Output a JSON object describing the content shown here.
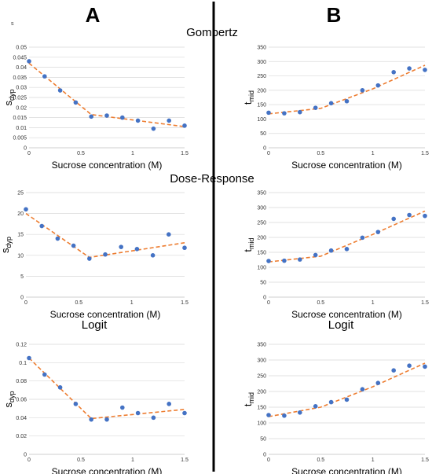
{
  "columns": {
    "left": "A",
    "right": "B"
  },
  "sections": {
    "gompertz": "Gompertz",
    "dose_response": "Dose-Response",
    "logit_left": "Logit",
    "logit_right": "Logit"
  },
  "colors": {
    "points": "#4472C4",
    "fit": "#ED7D31",
    "grid": "#d9d9d9",
    "divider": "#000000"
  },
  "chart_data": [
    {
      "id": "gA",
      "type": "scatter",
      "xlabel": "Sucrose concentration (M)",
      "ylabel": "s",
      "ylabel_sub": "dyp",
      "corner_label": "s",
      "xlim": [
        0,
        1.5
      ],
      "ylim": [
        0,
        0.05
      ],
      "x_ticks": [
        0,
        0.5,
        1,
        1.5
      ],
      "x_tick_labels": [
        "0",
        "0.5",
        "1",
        "1.5"
      ],
      "y_ticks": [
        0,
        0.005,
        0.01,
        0.015,
        0.02,
        0.025,
        0.03,
        0.035,
        0.04,
        0.045,
        0.05
      ],
      "y_tick_labels": [
        "0",
        "0.005",
        "0.01",
        "0.015",
        "0.02",
        "0.025",
        "0.03",
        "0.035",
        "0.04",
        "0.045",
        "0.05"
      ],
      "points": {
        "x": [
          0,
          0.15,
          0.3,
          0.45,
          0.6,
          0.75,
          0.9,
          1.05,
          1.2,
          1.35,
          1.5
        ],
        "y": [
          0.043,
          0.0355,
          0.0285,
          0.0225,
          0.0155,
          0.016,
          0.015,
          0.0135,
          0.0095,
          0.0135,
          0.011
        ]
      },
      "fit": {
        "x": [
          0,
          0.6,
          1.5
        ],
        "y": [
          0.042,
          0.0165,
          0.0105
        ]
      },
      "grid": true
    },
    {
      "id": "gB",
      "type": "scatter",
      "xlabel": "Sucrose concentration (M)",
      "ylabel": "t",
      "ylabel_sub": "mid",
      "xlim": [
        0,
        1.5
      ],
      "ylim": [
        0,
        350
      ],
      "x_ticks": [
        0,
        0.5,
        1,
        1.5
      ],
      "x_tick_labels": [
        "0",
        "0.5",
        "1",
        "1.5"
      ],
      "y_ticks": [
        0,
        50,
        100,
        150,
        200,
        250,
        300,
        350
      ],
      "y_tick_labels": [
        "0",
        "50",
        "100",
        "150",
        "200",
        "250",
        "300",
        "350"
      ],
      "points": {
        "x": [
          0,
          0.15,
          0.3,
          0.45,
          0.6,
          0.75,
          0.9,
          1.05,
          1.2,
          1.35,
          1.5
        ],
        "y": [
          122,
          120,
          124,
          139,
          155,
          162,
          200,
          217,
          263,
          276,
          271
        ]
      },
      "fit": {
        "x": [
          0,
          0.5,
          1.0,
          1.5
        ],
        "y": [
          118,
          137,
          205,
          287
        ]
      },
      "grid": true
    },
    {
      "id": "dA",
      "type": "scatter",
      "xlabel": "Sucrose concentration (M)",
      "ylabel": "s",
      "ylabel_sub": "dyp",
      "xlim": [
        0,
        1.5
      ],
      "ylim": [
        0,
        25
      ],
      "x_ticks": [
        0,
        0.5,
        1,
        1.5
      ],
      "x_tick_labels": [
        "0",
        "0.5",
        "1",
        "1.5"
      ],
      "y_ticks": [
        0,
        5,
        10,
        15,
        20,
        25
      ],
      "y_tick_labels": [
        "0",
        "5",
        "10",
        "15",
        "20",
        "25"
      ],
      "points": {
        "x": [
          0,
          0.15,
          0.3,
          0.45,
          0.6,
          0.75,
          0.9,
          1.05,
          1.2,
          1.35,
          1.5
        ],
        "y": [
          21,
          17,
          14,
          12.3,
          9.2,
          10.2,
          12,
          11.5,
          10,
          15,
          11.8
        ]
      },
      "fit": {
        "x": [
          0,
          0.6,
          1.5
        ],
        "y": [
          20,
          9.5,
          13
        ]
      },
      "grid": true
    },
    {
      "id": "dB",
      "type": "scatter",
      "xlabel": "Sucrose concentration (M)",
      "ylabel": "t",
      "ylabel_sub": "mid",
      "xlim": [
        0,
        1.5
      ],
      "ylim": [
        0,
        350
      ],
      "x_ticks": [
        0,
        0.5,
        1,
        1.5
      ],
      "x_tick_labels": [
        "0",
        "0.5",
        "1",
        "1.5"
      ],
      "y_ticks": [
        0,
        50,
        100,
        150,
        200,
        250,
        300,
        350
      ],
      "y_tick_labels": [
        "0",
        "50",
        "100",
        "150",
        "200",
        "250",
        "300",
        "350"
      ],
      "points": {
        "x": [
          0,
          0.15,
          0.3,
          0.45,
          0.6,
          0.75,
          0.9,
          1.05,
          1.2,
          1.35,
          1.5
        ],
        "y": [
          121,
          122,
          126,
          141,
          156,
          161,
          199,
          218,
          262,
          275,
          272
        ]
      },
      "fit": {
        "x": [
          0,
          0.5,
          1.0,
          1.5
        ],
        "y": [
          118,
          137,
          210,
          288
        ]
      },
      "grid": true
    },
    {
      "id": "lA",
      "type": "scatter",
      "xlabel": "Sucrose concentration (M)",
      "ylabel": "s",
      "ylabel_sub": "dyp",
      "xlim": [
        0,
        1.5
      ],
      "ylim": [
        0,
        0.12
      ],
      "x_ticks": [
        0,
        0.5,
        1,
        1.5
      ],
      "x_tick_labels": [
        "0",
        "0.5",
        "1",
        "1.5"
      ],
      "y_ticks": [
        0,
        0.02,
        0.04,
        0.06,
        0.08,
        0.1,
        0.12
      ],
      "y_tick_labels": [
        "0",
        "0.02",
        "0.04",
        "0.06",
        "0.08",
        "0.1",
        "0.12"
      ],
      "points": {
        "x": [
          0,
          0.15,
          0.3,
          0.45,
          0.6,
          0.75,
          0.9,
          1.05,
          1.2,
          1.35,
          1.5
        ],
        "y": [
          0.105,
          0.087,
          0.073,
          0.055,
          0.038,
          0.038,
          0.051,
          0.045,
          0.04,
          0.055,
          0.045
        ]
      },
      "fit": {
        "x": [
          0,
          0.6,
          1.5
        ],
        "y": [
          0.105,
          0.039,
          0.049
        ]
      },
      "grid": true
    },
    {
      "id": "lB",
      "type": "scatter",
      "xlabel": "Sucrose concentration (M)",
      "ylabel": "t",
      "ylabel_sub": "mid",
      "xlim": [
        0,
        1.5
      ],
      "ylim": [
        0,
        350
      ],
      "x_ticks": [
        0,
        0.5,
        1,
        1.5
      ],
      "x_tick_labels": [
        "0",
        "0.5",
        "1",
        "1.5"
      ],
      "y_ticks": [
        0,
        50,
        100,
        150,
        200,
        250,
        300,
        350
      ],
      "y_tick_labels": [
        "0",
        "50",
        "100",
        "150",
        "200",
        "250",
        "300",
        "350"
      ],
      "points": {
        "x": [
          0,
          0.15,
          0.3,
          0.45,
          0.6,
          0.75,
          0.9,
          1.05,
          1.2,
          1.35,
          1.5
        ],
        "y": [
          125,
          123,
          133,
          153,
          166,
          174,
          207,
          227,
          267,
          282,
          279
        ]
      },
      "fit": {
        "x": [
          0,
          0.5,
          1.0,
          1.5
        ],
        "y": [
          120,
          150,
          215,
          290
        ]
      },
      "grid": true
    }
  ]
}
